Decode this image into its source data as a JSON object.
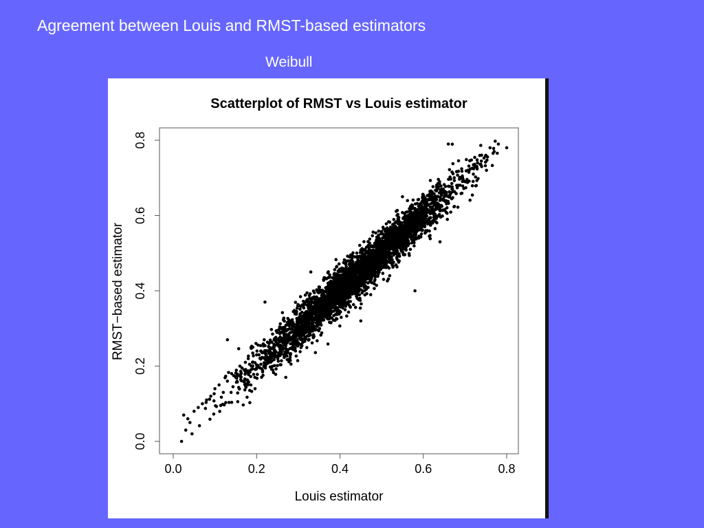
{
  "slide": {
    "title": "Agreement between Louis and RMST-based estimators",
    "subtitle": "Weibull"
  },
  "colors": {
    "background": "#6666ff",
    "panel": "#ffffff",
    "points": "#000000"
  },
  "chart_data": {
    "type": "scatter",
    "title": "Scatterplot of RMST vs Louis estimator",
    "xlabel": "Louis estimator",
    "ylabel": "RMST−based estimator",
    "xlim": [
      0.0,
      0.8
    ],
    "ylim": [
      0.0,
      0.8
    ],
    "xticks": [
      0.0,
      0.2,
      0.4,
      0.6,
      0.8
    ],
    "yticks": [
      0.0,
      0.2,
      0.4,
      0.6,
      0.8
    ],
    "xtick_labels": [
      "0.0",
      "0.2",
      "0.4",
      "0.6",
      "0.8"
    ],
    "ytick_labels": [
      "0.0",
      "0.2",
      "0.4",
      "0.6",
      "0.8"
    ],
    "grid": false,
    "series": [
      {
        "x": [
          0.02,
          0.025,
          0.03,
          0.035,
          0.04,
          0.045,
          0.05,
          0.06,
          0.07,
          0.08,
          0.09,
          0.1,
          0.11,
          0.12,
          0.13,
          0.14,
          0.15,
          0.16,
          0.17,
          0.18,
          0.19,
          0.2,
          0.21,
          0.22,
          0.23,
          0.24,
          0.25,
          0.26,
          0.27,
          0.28,
          0.29,
          0.3,
          0.31,
          0.32,
          0.33,
          0.34,
          0.35,
          0.36,
          0.37,
          0.38,
          0.39,
          0.4,
          0.41,
          0.42,
          0.43,
          0.44,
          0.45,
          0.46,
          0.47,
          0.48,
          0.49,
          0.5,
          0.51,
          0.52,
          0.53,
          0.54,
          0.55,
          0.56,
          0.57,
          0.58,
          0.59,
          0.6,
          0.61,
          0.62,
          0.63,
          0.64,
          0.65,
          0.66,
          0.67,
          0.68,
          0.69,
          0.7,
          0.71,
          0.72,
          0.73,
          0.74,
          0.75,
          0.76,
          0.77,
          0.78,
          0.8,
          0.13,
          0.22,
          0.45,
          0.33,
          0.55,
          0.66,
          0.64,
          0.27,
          0.58
        ],
        "y": [
          0.0,
          0.07,
          0.03,
          0.06,
          0.05,
          0.02,
          0.08,
          0.09,
          0.1,
          0.11,
          0.12,
          0.14,
          0.15,
          0.13,
          0.16,
          0.18,
          0.17,
          0.2,
          0.19,
          0.22,
          0.21,
          0.23,
          0.24,
          0.22,
          0.26,
          0.25,
          0.27,
          0.29,
          0.28,
          0.3,
          0.31,
          0.3,
          0.33,
          0.32,
          0.34,
          0.36,
          0.35,
          0.37,
          0.38,
          0.39,
          0.41,
          0.4,
          0.42,
          0.43,
          0.44,
          0.45,
          0.46,
          0.45,
          0.47,
          0.49,
          0.48,
          0.5,
          0.51,
          0.52,
          0.53,
          0.52,
          0.55,
          0.56,
          0.57,
          0.58,
          0.59,
          0.6,
          0.61,
          0.62,
          0.63,
          0.64,
          0.66,
          0.65,
          0.67,
          0.68,
          0.7,
          0.69,
          0.72,
          0.71,
          0.74,
          0.73,
          0.76,
          0.78,
          0.77,
          0.79,
          0.78,
          0.27,
          0.37,
          0.32,
          0.45,
          0.65,
          0.79,
          0.53,
          0.17,
          0.4
        ]
      }
    ]
  }
}
